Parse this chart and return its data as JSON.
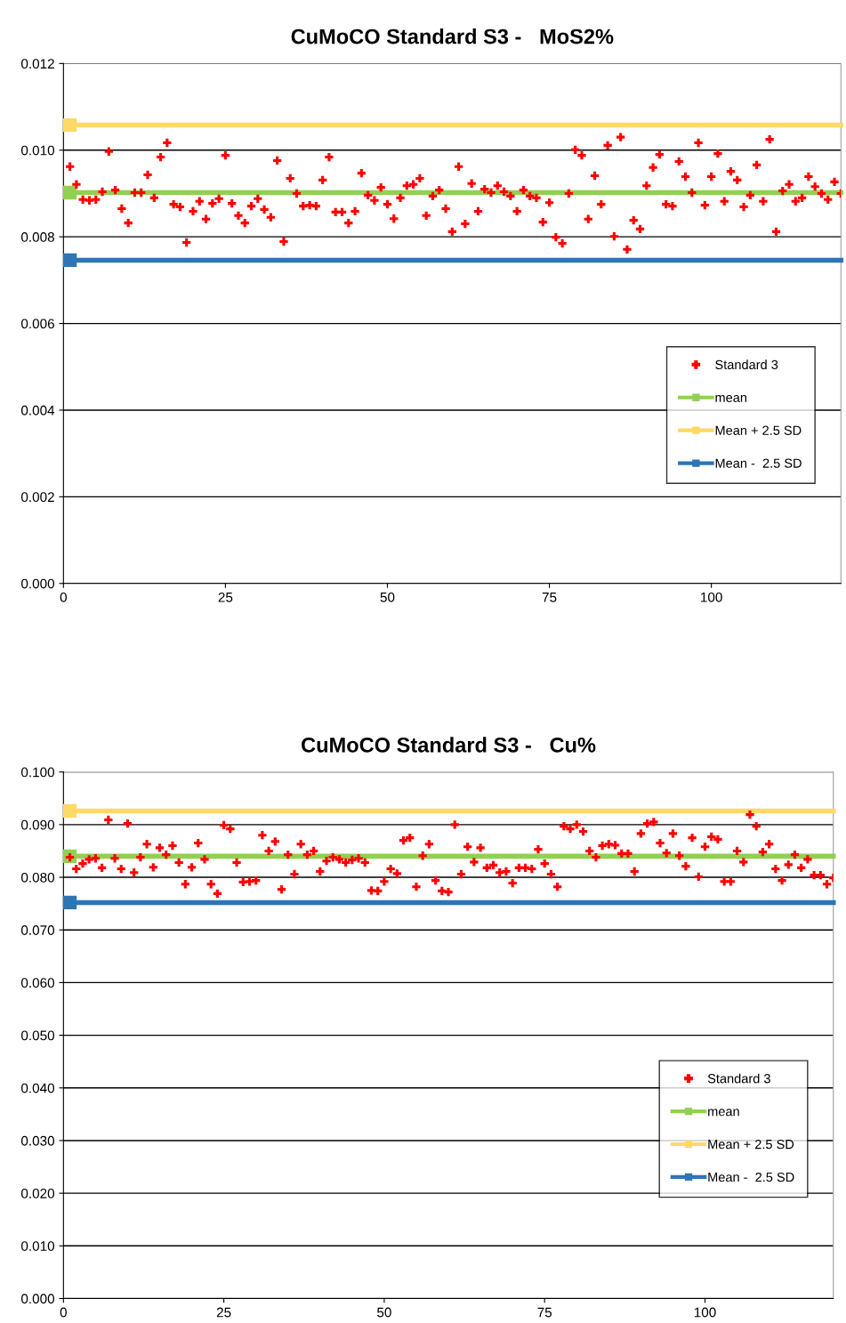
{
  "chart_data": [
    {
      "type": "scatter",
      "title": "CuMoCO Standard S3 -   MoS2%",
      "xlim": [
        0,
        120
      ],
      "xticks": [
        0,
        25,
        50,
        75,
        100
      ],
      "ylim": [
        0,
        0.012
      ],
      "yticks": [
        {
          "value": 0,
          "label": "0.000"
        },
        {
          "value": 0.002,
          "label": "0.002"
        },
        {
          "value": 0.004,
          "label": "0.004"
        },
        {
          "value": 0.006,
          "label": "0.006"
        },
        {
          "value": 0.008,
          "label": "0.008"
        },
        {
          "value": 0.01,
          "label": "0.010"
        },
        {
          "value": 0.012,
          "label": "0.012"
        }
      ],
      "grid": "y",
      "legend": "lower right",
      "series": [
        {
          "name": "Standard 3",
          "marker": "cross",
          "color": "#ff0000",
          "x": [
            1,
            2,
            3,
            4,
            5,
            6,
            7,
            8,
            9,
            10,
            11,
            12,
            13,
            14,
            15,
            16,
            17,
            18,
            19,
            20,
            21,
            22,
            23,
            24,
            25,
            26,
            27,
            28,
            29,
            30,
            31,
            32,
            33,
            34,
            35,
            36,
            37,
            38,
            39,
            40,
            41,
            42,
            43,
            44,
            45,
            46,
            47,
            48,
            49,
            50,
            51,
            52,
            53,
            54,
            55,
            56,
            57,
            58,
            59,
            60,
            61,
            62,
            63,
            64,
            65,
            66,
            67,
            68,
            69,
            70,
            71,
            72,
            73,
            74,
            75,
            76,
            77,
            78,
            79,
            80,
            81,
            82,
            83,
            84,
            85,
            86,
            87,
            88,
            89,
            90,
            91,
            92,
            93,
            94,
            95,
            96,
            97,
            98,
            99,
            100,
            101,
            102,
            103,
            104,
            105,
            106,
            107,
            108,
            109,
            110,
            111,
            112,
            113,
            114,
            115,
            116,
            117,
            118,
            119,
            120
          ],
          "values": [
            0.00962,
            0.00921,
            0.00886,
            0.00884,
            0.00886,
            0.00904,
            0.00997,
            0.00908,
            0.00865,
            0.00832,
            0.00902,
            0.00902,
            0.00943,
            0.0089,
            0.00984,
            0.01017,
            0.00875,
            0.00869,
            0.00787,
            0.00859,
            0.00882,
            0.00841,
            0.00877,
            0.00888,
            0.00988,
            0.00877,
            0.00849,
            0.00832,
            0.00871,
            0.00888,
            0.00863,
            0.00845,
            0.00976,
            0.00789,
            0.00935,
            0.009,
            0.00871,
            0.00873,
            0.00871,
            0.00931,
            0.00984,
            0.00857,
            0.00857,
            0.00832,
            0.00859,
            0.00947,
            0.00896,
            0.00884,
            0.00914,
            0.00875,
            0.00842,
            0.0089,
            0.00918,
            0.00921,
            0.00935,
            0.00849,
            0.00894,
            0.00908,
            0.00865,
            0.00812,
            0.00962,
            0.0083,
            0.00923,
            0.00859,
            0.0091,
            0.00902,
            0.00918,
            0.00904,
            0.00894,
            0.00859,
            0.00908,
            0.00894,
            0.0089,
            0.00834,
            0.00879,
            0.00799,
            0.00785,
            0.009,
            0.01001,
            0.00988,
            0.00841,
            0.00941,
            0.00875,
            0.01011,
            0.00801,
            0.0103,
            0.00771,
            0.00838,
            0.00818,
            0.00918,
            0.0096,
            0.0099,
            0.00875,
            0.00871,
            0.00974,
            0.00939,
            0.00902,
            0.01017,
            0.00873,
            0.00939,
            0.00992,
            0.00882,
            0.00951,
            0.00931,
            0.00869,
            0.00896,
            0.00966,
            0.00882,
            0.01025,
            0.00812,
            0.00906,
            0.00921,
            0.00882,
            0.0089,
            0.00939,
            0.00916,
            0.009,
            0.00886,
            0.00927,
            0.009
          ]
        },
        {
          "name": "mean",
          "type": "line",
          "marker": "square",
          "color": "#92d050",
          "x": [
            1,
            120
          ],
          "values": [
            0.00902,
            0.00902
          ]
        },
        {
          "name": "Mean + 2.5 SD",
          "type": "line",
          "marker": "square",
          "color": "#ffd966",
          "x": [
            1,
            120
          ],
          "values": [
            0.01058,
            0.01058
          ]
        },
        {
          "name": "Mean -  2.5 SD",
          "type": "line",
          "marker": "square",
          "color": "#2e75b6",
          "x": [
            1,
            120
          ],
          "values": [
            0.00746,
            0.00746
          ]
        }
      ]
    },
    {
      "type": "scatter",
      "title": "CuMoCO Standard S3 -   Cu%",
      "xlim": [
        0,
        120
      ],
      "xticks": [
        0,
        25,
        50,
        75,
        100
      ],
      "ylim": [
        0,
        0.1
      ],
      "yticks": [
        {
          "value": 0,
          "label": "0.000"
        },
        {
          "value": 0.01,
          "label": "0.010"
        },
        {
          "value": 0.02,
          "label": "0.020"
        },
        {
          "value": 0.03,
          "label": "0.030"
        },
        {
          "value": 0.04,
          "label": "0.040"
        },
        {
          "value": 0.05,
          "label": "0.050"
        },
        {
          "value": 0.06,
          "label": "0.060"
        },
        {
          "value": 0.07,
          "label": "0.070"
        },
        {
          "value": 0.08,
          "label": "0.080"
        },
        {
          "value": 0.09,
          "label": "0.090"
        },
        {
          "value": 0.1,
          "label": "0.100"
        }
      ],
      "grid": "y",
      "legend": "lower right",
      "series": [
        {
          "name": "Standard 3",
          "marker": "cross",
          "color": "#ff0000",
          "x": [
            1,
            2,
            3,
            4,
            5,
            6,
            7,
            8,
            9,
            10,
            11,
            12,
            13,
            14,
            15,
            16,
            17,
            18,
            19,
            20,
            21,
            22,
            23,
            24,
            25,
            26,
            27,
            28,
            29,
            30,
            31,
            32,
            33,
            34,
            35,
            36,
            37,
            38,
            39,
            40,
            41,
            42,
            43,
            44,
            45,
            46,
            47,
            48,
            49,
            50,
            51,
            52,
            53,
            54,
            55,
            56,
            57,
            58,
            59,
            60,
            61,
            62,
            63,
            64,
            65,
            66,
            67,
            68,
            69,
            70,
            71,
            72,
            73,
            74,
            75,
            76,
            77,
            78,
            79,
            80,
            81,
            82,
            83,
            84,
            85,
            86,
            87,
            88,
            89,
            90,
            91,
            92,
            93,
            94,
            95,
            96,
            97,
            98,
            99,
            100,
            101,
            102,
            103,
            104,
            105,
            106,
            107,
            108,
            109,
            110,
            111,
            112,
            113,
            114,
            115,
            116,
            117,
            118,
            119,
            120
          ],
          "values": [
            0.0838,
            0.0816,
            0.0826,
            0.0834,
            0.0836,
            0.0818,
            0.0909,
            0.0836,
            0.0816,
            0.0902,
            0.0809,
            0.0838,
            0.0863,
            0.0819,
            0.0856,
            0.0843,
            0.086,
            0.0828,
            0.0787,
            0.0819,
            0.0865,
            0.0834,
            0.0787,
            0.0769,
            0.0899,
            0.0892,
            0.0828,
            0.0791,
            0.0792,
            0.0794,
            0.088,
            0.085,
            0.0868,
            0.0777,
            0.0843,
            0.0806,
            0.0863,
            0.0843,
            0.085,
            0.0811,
            0.0831,
            0.0838,
            0.0834,
            0.0828,
            0.0833,
            0.0836,
            0.0828,
            0.0775,
            0.0774,
            0.0792,
            0.0816,
            0.0807,
            0.087,
            0.0875,
            0.0782,
            0.0841,
            0.0863,
            0.0794,
            0.0774,
            0.0772,
            0.09,
            0.0806,
            0.0858,
            0.0829,
            0.0856,
            0.0818,
            0.0823,
            0.0809,
            0.0811,
            0.0789,
            0.0818,
            0.0818,
            0.0816,
            0.0853,
            0.0826,
            0.0806,
            0.0782,
            0.0897,
            0.0892,
            0.09,
            0.0887,
            0.085,
            0.0838,
            0.086,
            0.0863,
            0.0861,
            0.0845,
            0.0845,
            0.0811,
            0.0883,
            0.0902,
            0.0905,
            0.0865,
            0.0846,
            0.0883,
            0.0841,
            0.0821,
            0.0875,
            0.0801,
            0.0858,
            0.0877,
            0.0872,
            0.0792,
            0.0792,
            0.085,
            0.0829,
            0.0919,
            0.0897,
            0.0848,
            0.0863,
            0.0816,
            0.0794,
            0.0824,
            0.0843,
            0.0818,
            0.0834,
            0.0804,
            0.0804,
            0.0787,
            0.0799
          ]
        },
        {
          "name": "mean",
          "type": "line",
          "marker": "square",
          "color": "#92d050",
          "x": [
            1,
            120
          ],
          "values": [
            0.084,
            0.084
          ]
        },
        {
          "name": "Mean + 2.5 SD",
          "type": "line",
          "marker": "square",
          "color": "#ffd966",
          "x": [
            1,
            120
          ],
          "values": [
            0.0926,
            0.0926
          ]
        },
        {
          "name": "Mean -  2.5 SD",
          "type": "line",
          "marker": "square",
          "color": "#2e75b6",
          "x": [
            1,
            120
          ],
          "values": [
            0.0752,
            0.0752
          ]
        }
      ]
    }
  ]
}
